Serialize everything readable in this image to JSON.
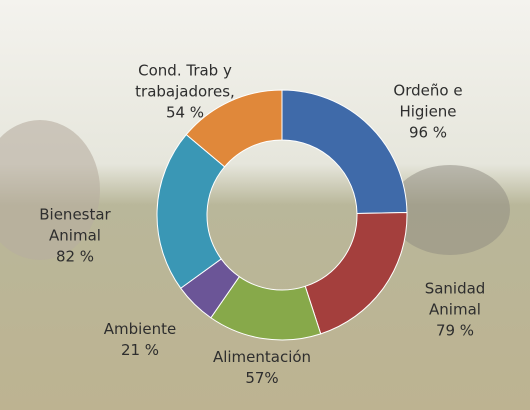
{
  "chart_data": {
    "type": "donut",
    "categories": [
      "Ordeño e Higiene",
      "Sanidad Animal",
      "Alimentación",
      "Ambiente",
      "Bienestar Animal",
      "Cond. Trab y trabajadores,"
    ],
    "values": [
      96,
      79,
      57,
      21,
      82,
      54
    ],
    "value_labels": [
      "96 %",
      "79 %",
      "57%",
      "21 %",
      "82 %",
      "54 %"
    ],
    "colors": [
      "#3f6aa9",
      "#a43f3d",
      "#87a94a",
      "#6b5597",
      "#3a97b5",
      "#e0883a"
    ]
  }
}
